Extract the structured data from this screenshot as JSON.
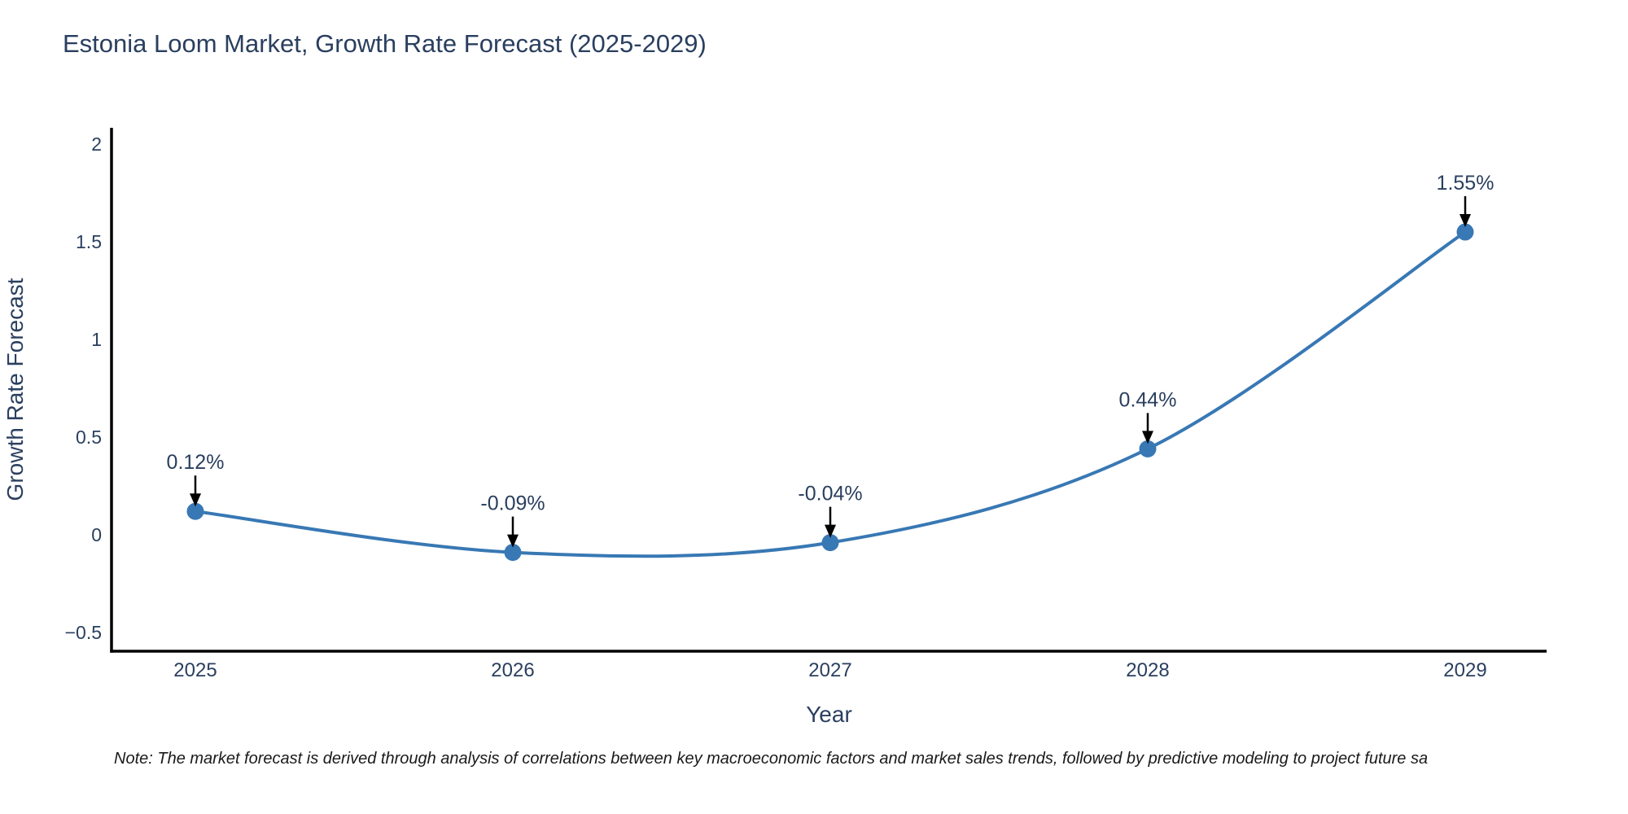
{
  "title": "Estonia Loom Market, Growth Rate Forecast (2025-2029)",
  "note": "Note: The market forecast is derived through analysis of correlations between key macroeconomic factors and market sales trends, followed by predictive modeling to project future sa",
  "chart_data": {
    "type": "line",
    "title": "Estonia Loom Market, Growth Rate Forecast (2025-2029)",
    "xlabel": "Year",
    "ylabel": "Growth Rate Forecast",
    "x": [
      2025,
      2026,
      2027,
      2028,
      2029
    ],
    "values": [
      0.12,
      -0.09,
      -0.04,
      0.44,
      1.55
    ],
    "annotations": [
      "0.12%",
      "-0.09%",
      "-0.04%",
      "0.44%",
      "1.55%"
    ],
    "x_ticks": [
      {
        "value": 2025,
        "label": "2025"
      },
      {
        "value": 2026,
        "label": "2026"
      },
      {
        "value": 2027,
        "label": "2027"
      },
      {
        "value": 2028,
        "label": "2028"
      },
      {
        "value": 2029,
        "label": "2029"
      }
    ],
    "y_ticks": [
      {
        "value": 2,
        "label": "2"
      },
      {
        "value": 1.5,
        "label": "1.5"
      },
      {
        "value": 1,
        "label": "1"
      },
      {
        "value": 0.5,
        "label": "0.5"
      },
      {
        "value": 0,
        "label": "0"
      },
      {
        "value": -0.5,
        "label": "−0.5"
      }
    ],
    "ylim": [
      -0.6,
      2.05
    ],
    "line_shape": "spline",
    "grid": false,
    "legend": "none",
    "colors": {
      "line": "#3878b4",
      "marker": "#3878b4",
      "arrow": "#000000",
      "axis": "#000000",
      "text": "#2a3f5f",
      "note": "#1a1a1a",
      "background": "#ffffff"
    }
  }
}
